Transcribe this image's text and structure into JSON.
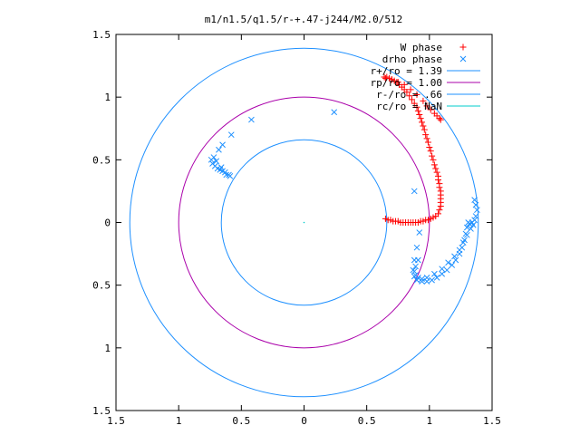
{
  "chart_data": {
    "type": "scatter",
    "title": "m1/n1.5/q1.5/r-+.47-j244/M2.0/512",
    "xlim": [
      -1.5,
      1.5
    ],
    "ylim": [
      -1.5,
      1.5
    ],
    "x_ticks": [
      -1.5,
      -1,
      -0.5,
      0,
      0.5,
      1,
      1.5
    ],
    "y_ticks": [
      -1.5,
      -1,
      -0.5,
      0,
      0.5,
      1,
      1.5
    ],
    "x_tick_labels": [
      "1.5",
      "1",
      "0.5",
      "0",
      "0.5",
      "1",
      "1.5"
    ],
    "y_tick_labels": [
      "1.5",
      "1",
      "0.5",
      "0",
      "0.5",
      "1",
      "1.5"
    ],
    "grid": false,
    "legend_position": "top-right",
    "series": [
      {
        "name": "W phase",
        "kind": "points",
        "marker": "plus",
        "color": "#ff0000",
        "points": [
          [
            0.65,
            0.03
          ],
          [
            0.67,
            0.02
          ],
          [
            0.69,
            0.02
          ],
          [
            0.71,
            0.01
          ],
          [
            0.73,
            0.01
          ],
          [
            0.75,
            0.01
          ],
          [
            0.77,
            0.0
          ],
          [
            0.79,
            0.0
          ],
          [
            0.81,
            0.0
          ],
          [
            0.83,
            0.0
          ],
          [
            0.85,
            0.0
          ],
          [
            0.87,
            0.0
          ],
          [
            0.89,
            0.0
          ],
          [
            0.91,
            0.0
          ],
          [
            0.93,
            0.01
          ],
          [
            0.95,
            0.01
          ],
          [
            0.97,
            0.02
          ],
          [
            0.99,
            0.02
          ],
          [
            1.01,
            0.03
          ],
          [
            1.03,
            0.04
          ],
          [
            1.05,
            0.05
          ],
          [
            1.07,
            0.07
          ],
          [
            1.08,
            0.1
          ],
          [
            1.09,
            0.13
          ],
          [
            1.09,
            0.16
          ],
          [
            1.09,
            0.19
          ],
          [
            1.09,
            0.22
          ],
          [
            1.09,
            0.25
          ],
          [
            1.08,
            0.28
          ],
          [
            1.08,
            0.31
          ],
          [
            1.07,
            0.34
          ],
          [
            1.07,
            0.37
          ],
          [
            1.06,
            0.4
          ],
          [
            1.05,
            0.43
          ],
          [
            1.04,
            0.46
          ],
          [
            1.03,
            0.5
          ],
          [
            1.02,
            0.53
          ],
          [
            1.01,
            0.57
          ],
          [
            1.0,
            0.6
          ],
          [
            0.99,
            0.64
          ],
          [
            0.98,
            0.67
          ],
          [
            0.97,
            0.7
          ],
          [
            0.96,
            0.74
          ],
          [
            0.95,
            0.77
          ],
          [
            0.94,
            0.8
          ],
          [
            0.93,
            0.83
          ],
          [
            0.92,
            0.86
          ],
          [
            0.91,
            0.89
          ],
          [
            0.9,
            0.92
          ],
          [
            0.88,
            0.95
          ],
          [
            0.86,
            0.98
          ],
          [
            0.84,
            1.01
          ],
          [
            0.82,
            1.04
          ],
          [
            0.8,
            1.06
          ],
          [
            0.78,
            1.08
          ],
          [
            0.76,
            1.1
          ],
          [
            0.74,
            1.12
          ],
          [
            0.72,
            1.13
          ],
          [
            0.7,
            1.14
          ],
          [
            0.68,
            1.15
          ],
          [
            0.66,
            1.16
          ],
          [
            0.64,
            1.16
          ],
          [
            0.65,
            1.15
          ],
          [
            0.7,
            1.14
          ],
          [
            0.75,
            1.12
          ],
          [
            0.8,
            1.1
          ],
          [
            0.85,
            1.06
          ],
          [
            0.9,
            1.02
          ],
          [
            0.95,
            0.97
          ],
          [
            0.98,
            0.93
          ],
          [
            1.01,
            0.9
          ],
          [
            1.04,
            0.87
          ],
          [
            1.06,
            0.85
          ],
          [
            1.08,
            0.83
          ],
          [
            1.09,
            0.82
          ]
        ]
      },
      {
        "name": "drho phase",
        "kind": "points",
        "marker": "cross",
        "color": "#1e90ff",
        "points": [
          [
            -0.42,
            0.82
          ],
          [
            0.24,
            0.88
          ],
          [
            -0.58,
            0.7
          ],
          [
            -0.65,
            0.62
          ],
          [
            -0.68,
            0.58
          ],
          [
            -0.72,
            0.52
          ],
          [
            -0.74,
            0.5
          ],
          [
            -0.73,
            0.47
          ],
          [
            -0.71,
            0.45
          ],
          [
            -0.69,
            0.43
          ],
          [
            -0.67,
            0.42
          ],
          [
            -0.65,
            0.41
          ],
          [
            -0.63,
            0.4
          ],
          [
            -0.62,
            0.38
          ],
          [
            -0.6,
            0.38
          ],
          [
            -0.59,
            0.37
          ],
          [
            -0.7,
            0.49
          ],
          [
            -0.66,
            0.44
          ],
          [
            0.88,
            0.25
          ],
          [
            0.92,
            -0.08
          ],
          [
            0.9,
            -0.2
          ],
          [
            0.88,
            -0.3
          ],
          [
            0.87,
            -0.38
          ],
          [
            0.88,
            -0.43
          ],
          [
            0.9,
            -0.46
          ],
          [
            0.94,
            -0.47
          ],
          [
            0.98,
            -0.47
          ],
          [
            1.02,
            -0.46
          ],
          [
            1.06,
            -0.44
          ],
          [
            1.1,
            -0.41
          ],
          [
            1.14,
            -0.38
          ],
          [
            1.18,
            -0.34
          ],
          [
            1.21,
            -0.3
          ],
          [
            1.24,
            -0.25
          ],
          [
            1.26,
            -0.2
          ],
          [
            1.28,
            -0.14
          ],
          [
            1.29,
            -0.09
          ],
          [
            1.3,
            -0.04
          ],
          [
            1.31,
            0.0
          ],
          [
            1.32,
            -0.01
          ],
          [
            1.34,
            0.0
          ],
          [
            1.36,
            0.02
          ],
          [
            1.37,
            0.05
          ],
          [
            1.38,
            0.1
          ],
          [
            1.37,
            0.14
          ],
          [
            1.36,
            0.18
          ],
          [
            1.35,
            -0.02
          ],
          [
            1.33,
            -0.05
          ],
          [
            1.3,
            -0.1
          ],
          [
            1.27,
            -0.16
          ],
          [
            1.24,
            -0.22
          ],
          [
            1.2,
            -0.27
          ],
          [
            1.15,
            -0.32
          ],
          [
            1.1,
            -0.37
          ],
          [
            1.04,
            -0.41
          ],
          [
            0.98,
            -0.44
          ],
          [
            0.94,
            -0.45
          ],
          [
            0.91,
            -0.44
          ],
          [
            0.89,
            -0.42
          ],
          [
            0.88,
            -0.39
          ],
          [
            0.89,
            -0.35
          ],
          [
            0.91,
            -0.3
          ]
        ]
      },
      {
        "name": "r+/ro = 1.39",
        "kind": "circle",
        "radius": 1.39,
        "color": "#1e90ff"
      },
      {
        "name": "rp/ro = 1.00",
        "kind": "circle",
        "radius": 1.0,
        "color": "#aa00aa"
      },
      {
        "name": "r-/ro = .66",
        "kind": "circle",
        "radius": 0.66,
        "color": "#1e90ff"
      },
      {
        "name": "rc/ro = NaN",
        "kind": "circle",
        "radius": null,
        "color": "#00cccc"
      }
    ]
  }
}
